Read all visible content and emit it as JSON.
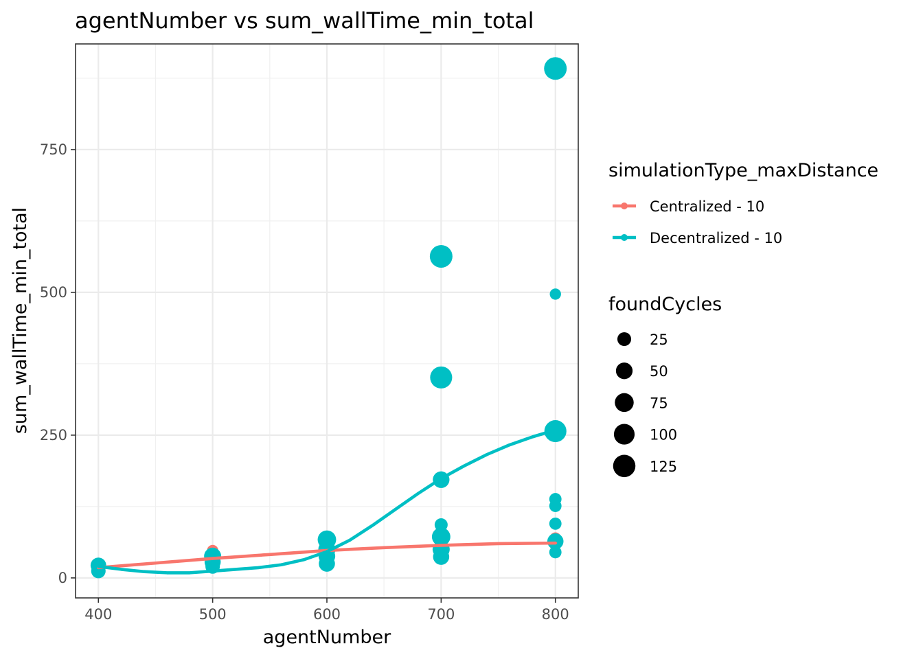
{
  "chart_data": {
    "type": "scatter",
    "title": "agentNumber  vs  sum_wallTime_min_total",
    "xlabel": "agentNumber",
    "ylabel": "sum_wallTime_min_total",
    "xlim": [
      380,
      820
    ],
    "ylim": [
      -35,
      935
    ],
    "x_ticks": [
      400,
      500,
      600,
      700,
      800
    ],
    "y_ticks": [
      0,
      250,
      500,
      750
    ],
    "x_minor": [
      450,
      550,
      650,
      750
    ],
    "y_minor": [
      125,
      375,
      625,
      875
    ],
    "grid": true,
    "legend_position": "right",
    "color_legend": {
      "title": "simulationType_maxDistance",
      "entries": [
        {
          "label": "Centralized - 10",
          "color": "#F8766D"
        },
        {
          "label": "Decentralized - 10",
          "color": "#00BFC4"
        }
      ]
    },
    "size_legend": {
      "title": "foundCycles",
      "entries": [
        {
          "label": "25",
          "value": 25
        },
        {
          "label": "50",
          "value": 50
        },
        {
          "label": "75",
          "value": 75
        },
        {
          "label": "100",
          "value": 100
        },
        {
          "label": "125",
          "value": 125
        }
      ]
    },
    "series": [
      {
        "name": "Centralized - 10",
        "color": "#F8766D",
        "points": [
          {
            "x": 400,
            "y": 20,
            "size": 20
          },
          {
            "x": 400,
            "y": 14,
            "size": 15
          },
          {
            "x": 500,
            "y": 48,
            "size": 10
          },
          {
            "x": 500,
            "y": 40,
            "size": 15
          },
          {
            "x": 500,
            "y": 30,
            "size": 20
          },
          {
            "x": 600,
            "y": 55,
            "size": 10
          },
          {
            "x": 600,
            "y": 45,
            "size": 15
          },
          {
            "x": 700,
            "y": 62,
            "size": 10
          },
          {
            "x": 700,
            "y": 52,
            "size": 15
          },
          {
            "x": 800,
            "y": 70,
            "size": 10
          },
          {
            "x": 800,
            "y": 60,
            "size": 15
          }
        ],
        "trend": [
          {
            "x": 400,
            "y": 18
          },
          {
            "x": 450,
            "y": 26
          },
          {
            "x": 500,
            "y": 34
          },
          {
            "x": 550,
            "y": 41
          },
          {
            "x": 600,
            "y": 48
          },
          {
            "x": 650,
            "y": 53
          },
          {
            "x": 700,
            "y": 57
          },
          {
            "x": 750,
            "y": 60
          },
          {
            "x": 800,
            "y": 61
          }
        ]
      },
      {
        "name": "Decentralized - 10",
        "color": "#00BFC4",
        "points": [
          {
            "x": 400,
            "y": 22,
            "size": 40
          },
          {
            "x": 400,
            "y": 12,
            "size": 30
          },
          {
            "x": 500,
            "y": 38,
            "size": 55
          },
          {
            "x": 500,
            "y": 28,
            "size": 45
          },
          {
            "x": 500,
            "y": 20,
            "size": 30
          },
          {
            "x": 600,
            "y": 67,
            "size": 70
          },
          {
            "x": 600,
            "y": 50,
            "size": 55
          },
          {
            "x": 600,
            "y": 38,
            "size": 50
          },
          {
            "x": 600,
            "y": 25,
            "size": 45
          },
          {
            "x": 700,
            "y": 563,
            "size": 130
          },
          {
            "x": 700,
            "y": 351,
            "size": 120
          },
          {
            "x": 700,
            "y": 172,
            "size": 50
          },
          {
            "x": 700,
            "y": 93,
            "size": 20
          },
          {
            "x": 700,
            "y": 72,
            "size": 70
          },
          {
            "x": 700,
            "y": 50,
            "size": 55
          },
          {
            "x": 700,
            "y": 37,
            "size": 45
          },
          {
            "x": 800,
            "y": 892,
            "size": 130
          },
          {
            "x": 800,
            "y": 497,
            "size": 10
          },
          {
            "x": 800,
            "y": 257,
            "size": 120
          },
          {
            "x": 800,
            "y": 138,
            "size": 15
          },
          {
            "x": 800,
            "y": 126,
            "size": 15
          },
          {
            "x": 800,
            "y": 95,
            "size": 15
          },
          {
            "x": 800,
            "y": 64,
            "size": 45
          },
          {
            "x": 800,
            "y": 45,
            "size": 15
          }
        ],
        "trend": [
          {
            "x": 400,
            "y": 20
          },
          {
            "x": 420,
            "y": 15
          },
          {
            "x": 440,
            "y": 11
          },
          {
            "x": 460,
            "y": 9
          },
          {
            "x": 480,
            "y": 9
          },
          {
            "x": 500,
            "y": 12
          },
          {
            "x": 520,
            "y": 15
          },
          {
            "x": 540,
            "y": 18
          },
          {
            "x": 560,
            "y": 23
          },
          {
            "x": 580,
            "y": 32
          },
          {
            "x": 600,
            "y": 46
          },
          {
            "x": 620,
            "y": 66
          },
          {
            "x": 640,
            "y": 92
          },
          {
            "x": 660,
            "y": 120
          },
          {
            "x": 680,
            "y": 148
          },
          {
            "x": 700,
            "y": 174
          },
          {
            "x": 720,
            "y": 196
          },
          {
            "x": 740,
            "y": 216
          },
          {
            "x": 760,
            "y": 233
          },
          {
            "x": 780,
            "y": 247
          },
          {
            "x": 800,
            "y": 259
          }
        ]
      }
    ]
  }
}
